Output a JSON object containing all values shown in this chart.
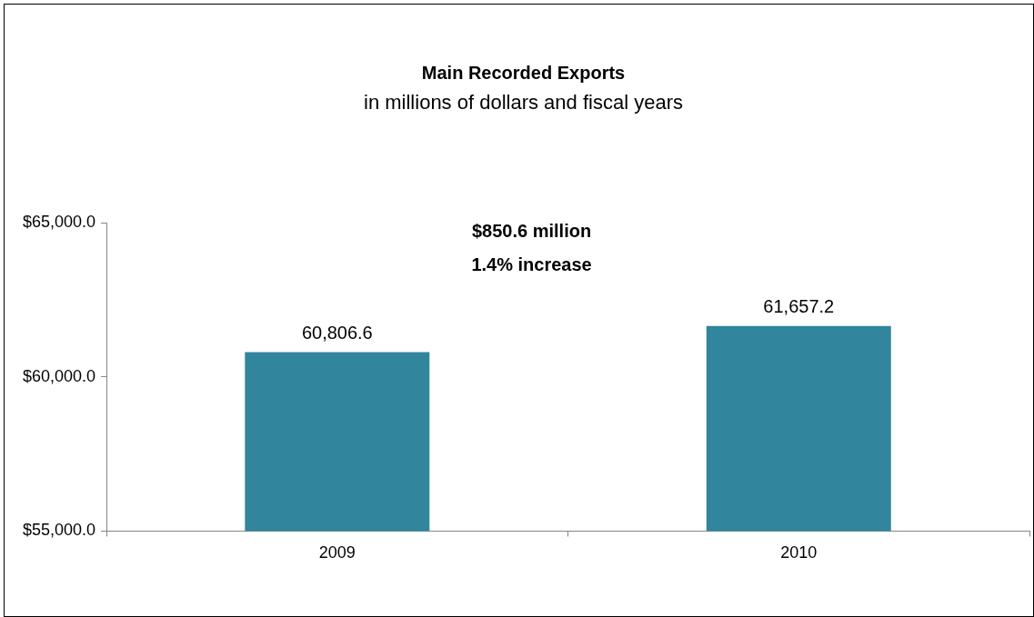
{
  "chart_data": {
    "type": "bar",
    "title": "Main Recorded Exports",
    "subtitle": "in millions of dollars and fiscal years",
    "categories": [
      "2009",
      "2010"
    ],
    "values": [
      60806.6,
      61657.2
    ],
    "value_labels": [
      "60,806.6",
      "61,657.2"
    ],
    "color": "#31859c",
    "ylim": [
      55000,
      65000
    ],
    "yticks": [
      {
        "value": 55000,
        "label": "$55,000.0"
      },
      {
        "value": 60000,
        "label": "$60,000.0"
      },
      {
        "value": 65000,
        "label": "$65,000.0"
      }
    ],
    "annotations": [
      "$850.6 million",
      "1.4% increase"
    ],
    "grid": false,
    "legend": false
  }
}
